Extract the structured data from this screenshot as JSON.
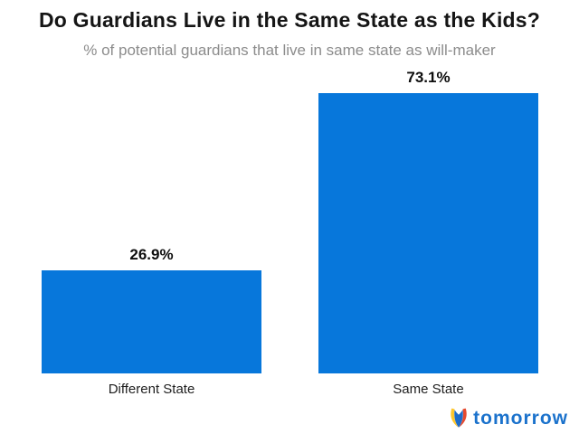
{
  "chart_data": {
    "type": "bar",
    "title": "Do Guardians Live in the Same State as the Kids?",
    "subtitle": "% of potential guardians that live in same state as will-maker",
    "categories": [
      "Different State",
      "Same State"
    ],
    "values": [
      26.9,
      73.1
    ],
    "value_labels": [
      "26.9%",
      "73.1%"
    ],
    "ylim": [
      0,
      100
    ],
    "grid": false,
    "axes_visible": false,
    "legend": "none",
    "bar_color": "#0777db",
    "label_position": "above-bar"
  },
  "branding": {
    "logo_text": "tomorrow",
    "logo_icon": "tomorrow-tulip-icon",
    "logo_text_color": "#1b72cc",
    "icon_colors": {
      "left_petal_yellow": "#ffc62b",
      "right_petal_red": "#e6492d",
      "center_blue": "#1e6bc8"
    }
  },
  "text_colors": {
    "title": "#151515",
    "subtitle": "#8c8c8c",
    "category_labels": "#1e1e1e",
    "value_labels": "#0e0e0e"
  }
}
